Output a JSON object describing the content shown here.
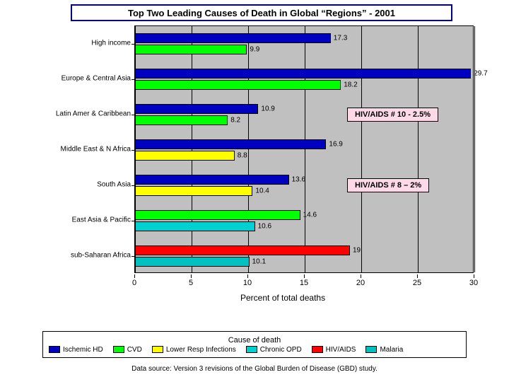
{
  "title": "Top Two Leading Causes of Death in Global “Regions” - 2001",
  "axis": {
    "x_title": "Percent of total deaths",
    "x_min": 0,
    "x_max": 30,
    "ticks": [
      0,
      5,
      10,
      15,
      20,
      25,
      30
    ]
  },
  "colors": {
    "plot_bg": "#c0c0c0",
    "ischemic": "#0000c0",
    "cvd": "#00ff00",
    "lri": "#ffff00",
    "copd": "#00d0d0",
    "hiv": "#ff0000",
    "malaria": "#00c0c0"
  },
  "regions": [
    {
      "label": "High income",
      "bars": [
        {
          "v": 17.3,
          "c": "ischemic"
        },
        {
          "v": 9.9,
          "c": "cvd"
        }
      ]
    },
    {
      "label": "Europe & Central Asia",
      "bars": [
        {
          "v": 29.7,
          "c": "ischemic"
        },
        {
          "v": 18.2,
          "c": "cvd"
        }
      ]
    },
    {
      "label": "Latin Amer & Caribbean",
      "bars": [
        {
          "v": 10.9,
          "c": "ischemic"
        },
        {
          "v": 8.2,
          "c": "cvd"
        }
      ]
    },
    {
      "label": "Middle East & N Africa",
      "bars": [
        {
          "v": 16.9,
          "c": "ischemic"
        },
        {
          "v": 8.8,
          "c": "lri"
        }
      ]
    },
    {
      "label": "South Asia",
      "bars": [
        {
          "v": 13.6,
          "c": "ischemic"
        },
        {
          "v": 10.4,
          "c": "lri"
        }
      ]
    },
    {
      "label": "East Asia & Pacific",
      "bars": [
        {
          "v": 14.6,
          "c": "cvd"
        },
        {
          "v": 10.6,
          "c": "copd"
        }
      ]
    },
    {
      "label": "sub-Saharan Africa",
      "bars": [
        {
          "v": 19,
          "c": "hiv"
        },
        {
          "v": 10.1,
          "c": "malaria"
        }
      ]
    }
  ],
  "annotations": [
    {
      "text": "HIV/AIDS # 10 - 2.5%",
      "region_index": 2
    },
    {
      "text": "HIV/AIDS # 8 – 2%",
      "region_index": 4
    }
  ],
  "legend": {
    "title": "Cause of death",
    "items": [
      {
        "label": "Ischemic HD",
        "c": "ischemic"
      },
      {
        "label": "CVD",
        "c": "cvd"
      },
      {
        "label": "Lower Resp Infections",
        "c": "lri"
      },
      {
        "label": "Chronic OPD",
        "c": "copd"
      },
      {
        "label": "HIV/AIDS",
        "c": "hiv"
      },
      {
        "label": "Malaria",
        "c": "malaria"
      }
    ]
  },
  "footer": "Data source: Version 3 revisions of the Global Burden of Disease (GBD) study."
}
